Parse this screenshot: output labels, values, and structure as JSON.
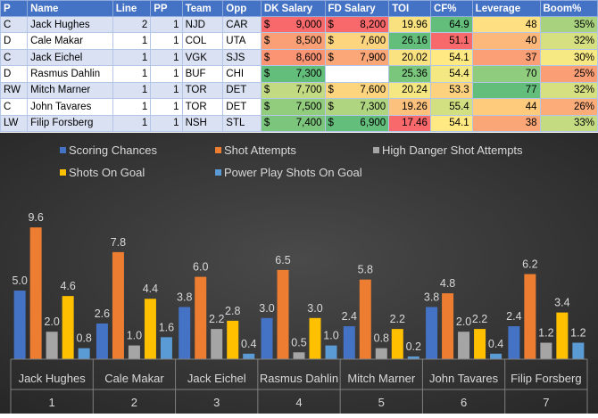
{
  "table": {
    "headers": [
      "P",
      "Name",
      "Line",
      "PP",
      "Team",
      "Opp",
      "DK Salary",
      "FD Salary",
      "TOI",
      "CF%",
      "Leverage",
      "Boom%"
    ],
    "rows": [
      {
        "pos": "C",
        "name": "Jack Hughes",
        "line": "2",
        "pp": "1",
        "team": "NJD",
        "opp": "CAR",
        "dk": "9,000",
        "fd": "8,200",
        "toi": "19.96",
        "cf": "64.9",
        "lev": "48",
        "boom": "35%",
        "colors": {
          "dk": "#f8696b",
          "fd": "#f8696b",
          "toi": "#f9e17f",
          "cf": "#63be7b",
          "lev": "#fedf81",
          "boom": "#a9d27f"
        }
      },
      {
        "pos": "D",
        "name": "Cale Makar",
        "line": "1",
        "pp": "1",
        "team": "COL",
        "opp": "UTA",
        "dk": "8,500",
        "fd": "7,600",
        "toi": "26.16",
        "cf": "51.1",
        "lev": "40",
        "boom": "32%",
        "colors": {
          "dk": "#fba076",
          "fd": "#fdd57f",
          "toi": "#63be7b",
          "cf": "#f8696b",
          "lev": "#fcb77a",
          "boom": "#d6e081"
        }
      },
      {
        "pos": "C",
        "name": "Jack Eichel",
        "line": "1",
        "pp": "1",
        "team": "VGK",
        "opp": "SJS",
        "dk": "8,600",
        "fd": "7,900",
        "toi": "20.02",
        "cf": "54.1",
        "lev": "37",
        "boom": "30%",
        "colors": {
          "dk": "#fa9473",
          "fd": "#fca777",
          "toi": "#f9e27f",
          "cf": "#fee983",
          "lev": "#fba076",
          "boom": "#f6e883"
        }
      },
      {
        "pos": "D",
        "name": "Rasmus Dahlin",
        "line": "1",
        "pp": "1",
        "team": "BUF",
        "opp": "CHI",
        "dk": "7,300",
        "fd": "",
        "toi": "25.36",
        "cf": "54.4",
        "lev": "70",
        "boom": "25%",
        "colors": {
          "dk": "#63be7b",
          "fd": "",
          "toi": "#7ac67c",
          "cf": "#f4e883",
          "lev": "#90cc7e",
          "boom": "#fa9e75"
        }
      },
      {
        "pos": "RW",
        "name": "Mitch Marner",
        "line": "1",
        "pp": "1",
        "team": "TOR",
        "opp": "DET",
        "dk": "7,700",
        "fd": "7,600",
        "toi": "20.24",
        "cf": "53.3",
        "lev": "77",
        "boom": "32%",
        "colors": {
          "dk": "#c2da81",
          "fd": "#fdd57f",
          "toi": "#f5e883",
          "cf": "#fdd27f",
          "lev": "#63be7b",
          "boom": "#d6e081"
        }
      },
      {
        "pos": "C",
        "name": "John Tavares",
        "line": "1",
        "pp": "1",
        "team": "TOR",
        "opp": "DET",
        "dk": "7,500",
        "fd": "7,300",
        "toi": "19.26",
        "cf": "55.4",
        "lev": "44",
        "boom": "26%",
        "colors": {
          "dk": "#92cd7e",
          "fd": "#b0d580",
          "toi": "#fcc17c",
          "cf": "#d3e082",
          "lev": "#fecb7d",
          "boom": "#fbac78"
        }
      },
      {
        "pos": "LW",
        "name": "Filip Forsberg",
        "line": "1",
        "pp": "1",
        "team": "NSH",
        "opp": "STL",
        "dk": "7,400",
        "fd": "6,900",
        "toi": "17.46",
        "cf": "54.1",
        "lev": "38",
        "boom": "33%",
        "colors": {
          "dk": "#7bc67c",
          "fd": "#63be7b",
          "toi": "#f8696b",
          "cf": "#fee983",
          "lev": "#fba677",
          "boom": "#c5db81"
        }
      }
    ]
  },
  "chart_data": {
    "type": "bar",
    "categories": [
      {
        "name": "Jack Hughes",
        "index": "1"
      },
      {
        "name": "Cale Makar",
        "index": "2"
      },
      {
        "name": "Jack Eichel",
        "index": "3"
      },
      {
        "name": "Rasmus Dahlin",
        "index": "4"
      },
      {
        "name": "Mitch Marner",
        "index": "5"
      },
      {
        "name": "John Tavares",
        "index": "6"
      },
      {
        "name": "Filip Forsberg",
        "index": "7"
      }
    ],
    "series": [
      {
        "name": "Scoring Chances",
        "color": "#4472c4",
        "values": [
          5.0,
          2.6,
          3.8,
          3.0,
          2.4,
          3.8,
          2.4
        ],
        "labels": [
          "5.0",
          "2.6",
          "3.8",
          "3.0",
          "2.4",
          "3.8",
          "2.4"
        ]
      },
      {
        "name": "Shot Attempts",
        "color": "#ed7d31",
        "values": [
          9.6,
          7.8,
          6.0,
          6.5,
          5.8,
          4.8,
          6.2
        ],
        "labels": [
          "9.6",
          "7.8",
          "6.0",
          "6.5",
          "5.8",
          "4.8",
          "6.2"
        ]
      },
      {
        "name": "High Danger Shot Attempts",
        "color": "#a5a5a5",
        "values": [
          2.0,
          1.0,
          2.2,
          0.5,
          0.8,
          2.0,
          1.2
        ],
        "labels": [
          "2.0",
          "1.0",
          "2.2",
          "0.5",
          "0.8",
          "2.0",
          "1.2"
        ]
      },
      {
        "name": "Shots On Goal",
        "color": "#ffc000",
        "values": [
          4.6,
          4.4,
          2.8,
          3.0,
          2.2,
          2.2,
          3.4
        ],
        "labels": [
          "4.6",
          "4.4",
          "2.8",
          "3.0",
          "2.2",
          "2.2",
          "3.4"
        ]
      },
      {
        "name": "Power Play Shots On Goal",
        "color": "#5b9bd5",
        "values": [
          0.8,
          1.6,
          0.4,
          1.0,
          0.2,
          0.4,
          1.2
        ],
        "labels": [
          "0.8",
          "1.6",
          "0.4",
          "1.0",
          "0.2",
          "0.4",
          "1.2"
        ]
      }
    ],
    "ylim": [
      0,
      10
    ],
    "grid": false,
    "legend_position": "top"
  }
}
